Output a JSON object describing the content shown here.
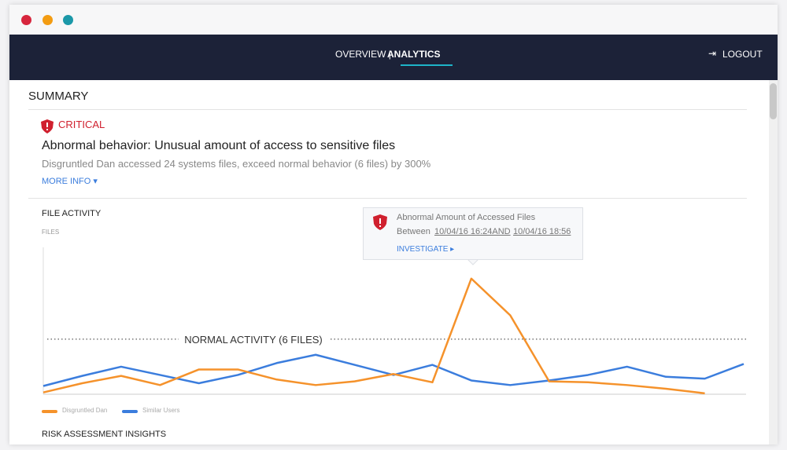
{
  "page": {
    "nav": {
      "overview": "OVERVIEW |",
      "analytics": "ANALYTICS",
      "logout": "LOGOUT"
    },
    "summary": {
      "title": "SUMMARY",
      "severity": "CRITICAL",
      "headline": "Abnormal behavior: Unusual amount of access to sensitive files",
      "description": "Disgruntled Dan accessed 24 systems files, exceed normal behavior (6 files) by 300%",
      "more": "MORE INFO"
    },
    "tooltip": {
      "title": "Abnormal Amount of Accessed Files",
      "between": "Between",
      "start": "10/04/16 16:24AND",
      "end": "10/04/16 18:56",
      "action": "INVESTIGATE"
    },
    "footer": "RISK ASSESSMENT INSIGHTS"
  },
  "chart_data": {
    "type": "line",
    "title": "FILE ACTIVITY",
    "y_label": "FILES",
    "categories": [
      null,
      null,
      null,
      null,
      null,
      null,
      null,
      null,
      null,
      null,
      null,
      null,
      null,
      null,
      null,
      null,
      null,
      null,
      null
    ],
    "series": [
      {
        "name": "Disgruntled Dan",
        "color": "#f5922b",
        "values": [
          0.2,
          1.2,
          2.0,
          1.0,
          2.7,
          2.7,
          1.6,
          1.0,
          1.4,
          2.2,
          1.3,
          12.6,
          8.6,
          1.4,
          1.3,
          1.0,
          0.6,
          0.1,
          null
        ]
      },
      {
        "name": "Similar Users",
        "color": "#3b7ddd",
        "values": [
          0.9,
          2.0,
          3.0,
          2.1,
          1.2,
          2.1,
          3.4,
          4.3,
          3.2,
          2.1,
          3.2,
          1.5,
          1.0,
          1.5,
          2.1,
          3.0,
          1.9,
          1.7,
          3.3
        ]
      }
    ],
    "reference_line": {
      "value": 6,
      "label": "NORMAL ACTIVITY (6 FILES)"
    },
    "ylim": [
      0,
      16
    ]
  }
}
